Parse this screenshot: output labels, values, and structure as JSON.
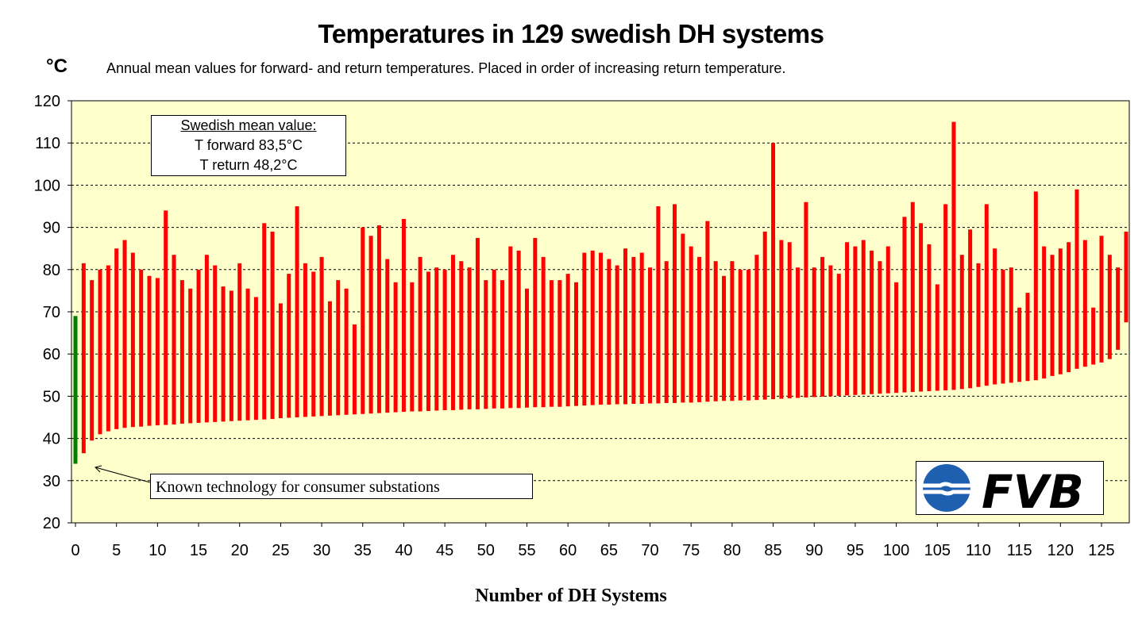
{
  "chart_data": {
    "type": "bar",
    "title": "Temperatures in 129 swedish DH systems",
    "subtitle": "Annual mean values for forward- and return temperatures. Placed in order of increasing return temperature.",
    "ylabel": "°C",
    "xlabel": "Number of DH Systems",
    "ylim": [
      20,
      120
    ],
    "yticks": [
      20,
      30,
      40,
      50,
      60,
      70,
      80,
      90,
      100,
      110,
      120
    ],
    "xticks": [
      0,
      5,
      10,
      15,
      20,
      25,
      30,
      35,
      40,
      45,
      50,
      55,
      60,
      65,
      70,
      75,
      80,
      85,
      90,
      95,
      100,
      105,
      110,
      115,
      120,
      125
    ],
    "xlim": [
      0,
      128
    ],
    "grid": true,
    "colors": {
      "plot_bg": "#ffffcc",
      "bar": "#ff0000",
      "highlight_bar": "#008000",
      "grid": "#000000"
    },
    "highlight_index": 0,
    "series": [
      {
        "name": "forward",
        "values": [
          69,
          81.5,
          77.5,
          80,
          81,
          85,
          87,
          84,
          80,
          78.5,
          78,
          94,
          83.5,
          77.5,
          75.5,
          80,
          83.5,
          81,
          76,
          75,
          81.5,
          75.5,
          73.5,
          91,
          89,
          72,
          79,
          95,
          81.5,
          79.5,
          83,
          72.5,
          77.5,
          75.5,
          67,
          90,
          88,
          90.5,
          82.5,
          77,
          92,
          77,
          83,
          79.5,
          80.5,
          80,
          83.5,
          82,
          80.5,
          87.5,
          77.5,
          80,
          77.5,
          85.5,
          84.5,
          75.5,
          87.5,
          83,
          77.5,
          77.5,
          79,
          77,
          84,
          84.5,
          84,
          82.5,
          81,
          85,
          83,
          84,
          80.5,
          95,
          82,
          95.5,
          88.5,
          85.5,
          83,
          91.5,
          82,
          78.5,
          82,
          80,
          80,
          83.5,
          89,
          110,
          87,
          86.5,
          80.5,
          96,
          80.5,
          83,
          81,
          79,
          86.5,
          85.5,
          87,
          84.5,
          82,
          85.5,
          77,
          92.5,
          96,
          91,
          86,
          76.5,
          95.5,
          115,
          83.5,
          89.5,
          81.5,
          95.5,
          85,
          80,
          80.5,
          71,
          74.5,
          98.5,
          85.5,
          83.5,
          85,
          86.5,
          99,
          87,
          71,
          88,
          83.5,
          80.5,
          89
        ]
      },
      {
        "name": "return",
        "values": [
          34,
          36.5,
          39.5,
          41,
          41.7,
          42.2,
          42.5,
          42.7,
          42.8,
          43,
          43.1,
          43.2,
          43.3,
          43.5,
          43.6,
          43.7,
          43.8,
          43.9,
          44,
          44.1,
          44.2,
          44.3,
          44.4,
          44.5,
          44.6,
          44.8,
          44.9,
          45,
          45.1,
          45.2,
          45.3,
          45.4,
          45.5,
          45.6,
          45.7,
          45.8,
          45.9,
          46,
          46.1,
          46.2,
          46.3,
          46.4,
          46.4,
          46.5,
          46.6,
          46.7,
          46.7,
          46.8,
          46.9,
          46.9,
          47,
          47.1,
          47.1,
          47.2,
          47.2,
          47.3,
          47.4,
          47.4,
          47.5,
          47.5,
          47.6,
          47.7,
          47.8,
          47.9,
          48,
          48,
          48.1,
          48.1,
          48.2,
          48.2,
          48.3,
          48.3,
          48.4,
          48.4,
          48.5,
          48.5,
          48.6,
          48.7,
          48.8,
          48.9,
          48.9,
          49,
          49,
          49.1,
          49.2,
          49.3,
          49.4,
          49.5,
          49.6,
          49.7,
          49.8,
          49.9,
          50,
          50.1,
          50.2,
          50.3,
          50.4,
          50.5,
          50.6,
          50.7,
          50.8,
          50.9,
          51,
          51.1,
          51.2,
          51.3,
          51.4,
          51.5,
          51.7,
          51.9,
          52.2,
          52.5,
          52.8,
          53,
          53.2,
          53.4,
          53.6,
          53.8,
          54.2,
          54.8,
          55.2,
          55.7,
          56.5,
          57,
          57.5,
          58,
          58.8,
          61,
          67.5
        ]
      }
    ],
    "annotations": {
      "mean_box": {
        "header": "Swedish mean value:",
        "line1": "T forward 83,5°C",
        "line2": "T return 48,2°C"
      },
      "arrow_note": "Known technology for consumer substations"
    },
    "logo_text": "FVB"
  }
}
